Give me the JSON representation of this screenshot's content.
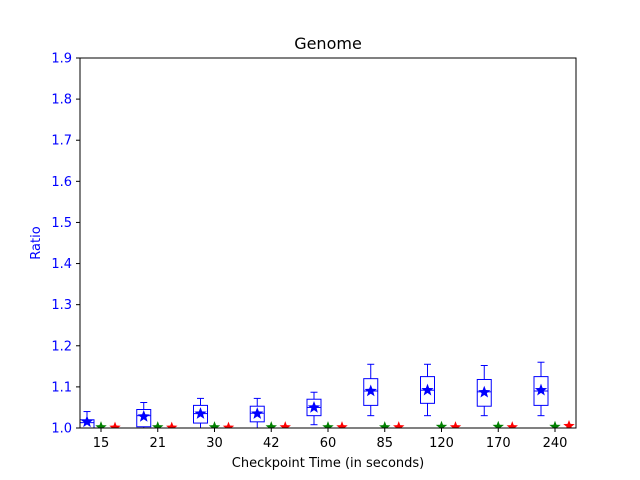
{
  "chart_data": {
    "type": "box",
    "title": "Genome",
    "xlabel": "Checkpoint Time (in seconds)",
    "ylabel": "Ratio",
    "ylim": [
      1.0,
      1.9
    ],
    "yticks": [
      "1.0",
      "1.1",
      "1.2",
      "1.3",
      "1.4",
      "1.5",
      "1.6",
      "1.7",
      "1.8",
      "1.9"
    ],
    "categories": [
      "15",
      "21",
      "30",
      "42",
      "60",
      "85",
      "120",
      "170",
      "240"
    ],
    "grid": false,
    "colors": {
      "axis_accent": "#0000ff",
      "box": "#0000ff",
      "series2": "#008000",
      "series3": "#ff0000"
    },
    "series": [
      {
        "color": "#0000ff",
        "marker": "star",
        "boxes": [
          {
            "whislo": 1.0,
            "q1": 1.0,
            "med": 1.013,
            "q3": 1.02,
            "whishi": 1.04,
            "mean": 1.015
          },
          {
            "whislo": 1.0,
            "q1": 1.003,
            "med": 1.03,
            "q3": 1.045,
            "whishi": 1.062,
            "mean": 1.028
          },
          {
            "whislo": 1.0,
            "q1": 1.012,
            "med": 1.035,
            "q3": 1.055,
            "whishi": 1.072,
            "mean": 1.035
          },
          {
            "whislo": 1.0,
            "q1": 1.015,
            "med": 1.036,
            "q3": 1.053,
            "whishi": 1.072,
            "mean": 1.035
          },
          {
            "whislo": 1.008,
            "q1": 1.03,
            "med": 1.05,
            "q3": 1.07,
            "whishi": 1.087,
            "mean": 1.05
          },
          {
            "whislo": 1.03,
            "q1": 1.055,
            "med": 1.09,
            "q3": 1.12,
            "whishi": 1.155,
            "mean": 1.09
          },
          {
            "whislo": 1.03,
            "q1": 1.06,
            "med": 1.092,
            "q3": 1.125,
            "whishi": 1.155,
            "mean": 1.092
          },
          {
            "whislo": 1.03,
            "q1": 1.053,
            "med": 1.088,
            "q3": 1.118,
            "whishi": 1.152,
            "mean": 1.087
          },
          {
            "whislo": 1.03,
            "q1": 1.055,
            "med": 1.09,
            "q3": 1.125,
            "whishi": 1.16,
            "mean": 1.092
          }
        ]
      },
      {
        "color": "#008000",
        "marker": "star",
        "values": [
          1.002,
          1.002,
          1.002,
          1.002,
          1.002,
          1.002,
          1.003,
          1.003,
          1.003
        ]
      },
      {
        "color": "#ff0000",
        "marker": "star",
        "values": [
          1.001,
          1.001,
          1.001,
          1.002,
          1.002,
          1.002,
          1.002,
          1.002,
          1.005
        ]
      }
    ]
  }
}
